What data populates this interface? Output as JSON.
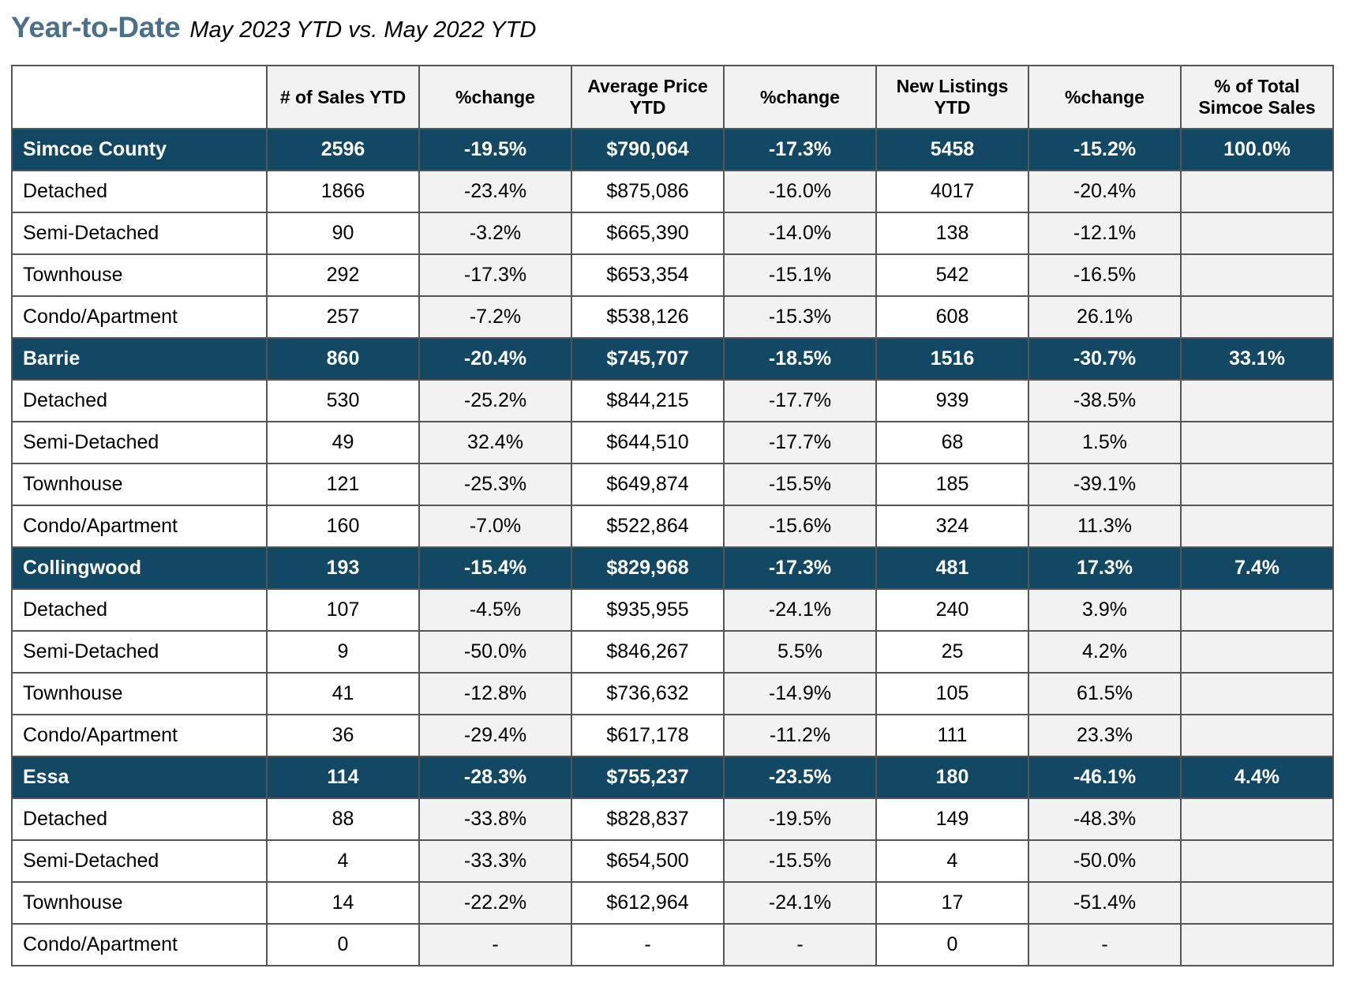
{
  "title": {
    "main": "Year-to-Date",
    "sub": "May 2023 YTD vs. May 2022 YTD"
  },
  "table": {
    "columns": [
      "",
      "# of Sales YTD",
      "%change",
      "Average Price YTD",
      "%change",
      "New Listings YTD",
      "%change",
      "% of Total Simcoe Sales"
    ],
    "groups": [
      {
        "region": [
          "Simcoe County",
          "2596",
          "-19.5%",
          "$790,064",
          "-17.3%",
          "5458",
          "-15.2%",
          "100.0%"
        ],
        "rows": [
          [
            "Detached",
            "1866",
            "-23.4%",
            "$875,086",
            "-16.0%",
            "4017",
            "-20.4%",
            ""
          ],
          [
            "Semi-Detached",
            "90",
            "-3.2%",
            "$665,390",
            "-14.0%",
            "138",
            "-12.1%",
            ""
          ],
          [
            "Townhouse",
            "292",
            "-17.3%",
            "$653,354",
            "-15.1%",
            "542",
            "-16.5%",
            ""
          ],
          [
            "Condo/Apartment",
            "257",
            "-7.2%",
            "$538,126",
            "-15.3%",
            "608",
            "26.1%",
            ""
          ]
        ]
      },
      {
        "region": [
          "Barrie",
          "860",
          "-20.4%",
          "$745,707",
          "-18.5%",
          "1516",
          "-30.7%",
          "33.1%"
        ],
        "rows": [
          [
            "Detached",
            "530",
            "-25.2%",
            "$844,215",
            "-17.7%",
            "939",
            "-38.5%",
            ""
          ],
          [
            "Semi-Detached",
            "49",
            "32.4%",
            "$644,510",
            "-17.7%",
            "68",
            "1.5%",
            ""
          ],
          [
            "Townhouse",
            "121",
            "-25.3%",
            "$649,874",
            "-15.5%",
            "185",
            "-39.1%",
            ""
          ],
          [
            "Condo/Apartment",
            "160",
            "-7.0%",
            "$522,864",
            "-15.6%",
            "324",
            "11.3%",
            ""
          ]
        ]
      },
      {
        "region": [
          "Collingwood",
          "193",
          "-15.4%",
          "$829,968",
          "-17.3%",
          "481",
          "17.3%",
          "7.4%"
        ],
        "rows": [
          [
            "Detached",
            "107",
            "-4.5%",
            "$935,955",
            "-24.1%",
            "240",
            "3.9%",
            ""
          ],
          [
            "Semi-Detached",
            "9",
            "-50.0%",
            "$846,267",
            "5.5%",
            "25",
            "4.2%",
            ""
          ],
          [
            "Townhouse",
            "41",
            "-12.8%",
            "$736,632",
            "-14.9%",
            "105",
            "61.5%",
            ""
          ],
          [
            "Condo/Apartment",
            "36",
            "-29.4%",
            "$617,178",
            "-11.2%",
            "111",
            "23.3%",
            ""
          ]
        ]
      },
      {
        "region": [
          "Essa",
          "114",
          "-28.3%",
          "$755,237",
          "-23.5%",
          "180",
          "-46.1%",
          "4.4%"
        ],
        "rows": [
          [
            "Detached",
            "88",
            "-33.8%",
            "$828,837",
            "-19.5%",
            "149",
            "-48.3%",
            ""
          ],
          [
            "Semi-Detached",
            "4",
            "-33.3%",
            "$654,500",
            "-15.5%",
            "4",
            "-50.0%",
            ""
          ],
          [
            "Townhouse",
            "14",
            "-22.2%",
            "$612,964",
            "-24.1%",
            "17",
            "-51.4%",
            ""
          ],
          [
            "Condo/Apartment",
            "0",
            "-",
            "-",
            "-",
            "0",
            "-",
            ""
          ]
        ]
      }
    ]
  },
  "colors": {
    "title": "#4a7189",
    "region_row_bg": "#134865",
    "region_row_text": "#ffffff",
    "shaded_cell": "#f2f2f2",
    "border": "#555555"
  }
}
